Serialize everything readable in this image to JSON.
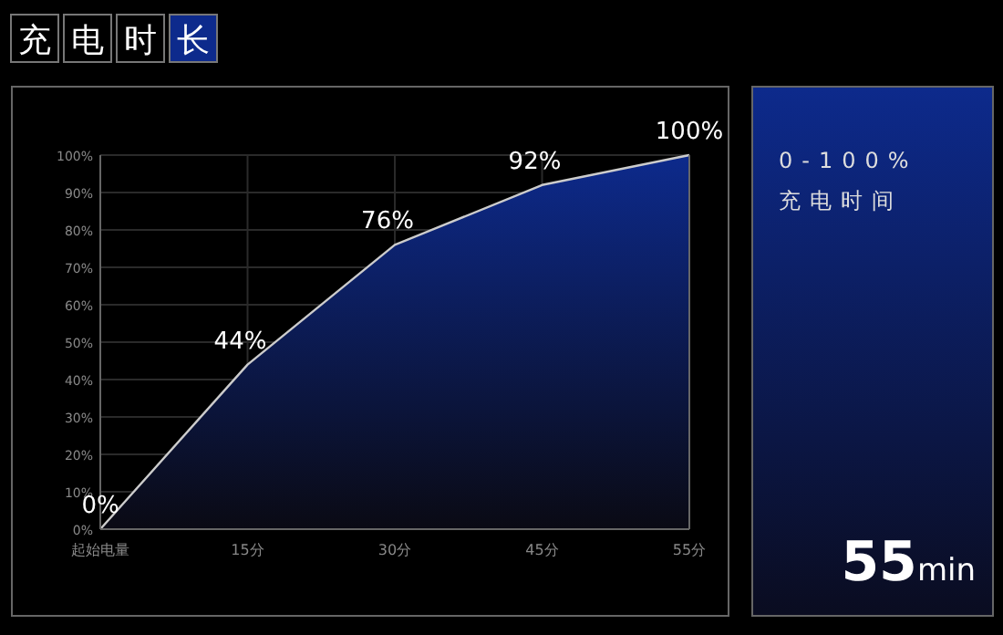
{
  "chart_data": {
    "type": "area",
    "title": "充电时长",
    "categories": [
      "起始电量",
      "15分",
      "30分",
      "45分",
      "55分"
    ],
    "values": [
      0,
      44,
      76,
      92,
      100
    ],
    "value_labels": [
      "0%",
      "44%",
      "76%",
      "92%",
      "100%"
    ],
    "color": "#0d2a8c",
    "ylim": [
      0,
      100
    ],
    "yticks": [
      {
        "value": 0,
        "label": "0%"
      },
      {
        "value": 10,
        "label": "10%"
      },
      {
        "value": 20,
        "label": "20%"
      },
      {
        "value": 30,
        "label": "30%"
      },
      {
        "value": 40,
        "label": "40%"
      },
      {
        "value": 50,
        "label": "50%"
      },
      {
        "value": 60,
        "label": "60%"
      },
      {
        "value": 70,
        "label": "70%"
      },
      {
        "value": 80,
        "label": "80%"
      },
      {
        "value": 90,
        "label": "90%"
      },
      {
        "value": 100,
        "label": "100%"
      }
    ],
    "grid": true,
    "annotations": [
      "0-100%",
      "充电时间",
      "**55**min"
    ]
  }
}
